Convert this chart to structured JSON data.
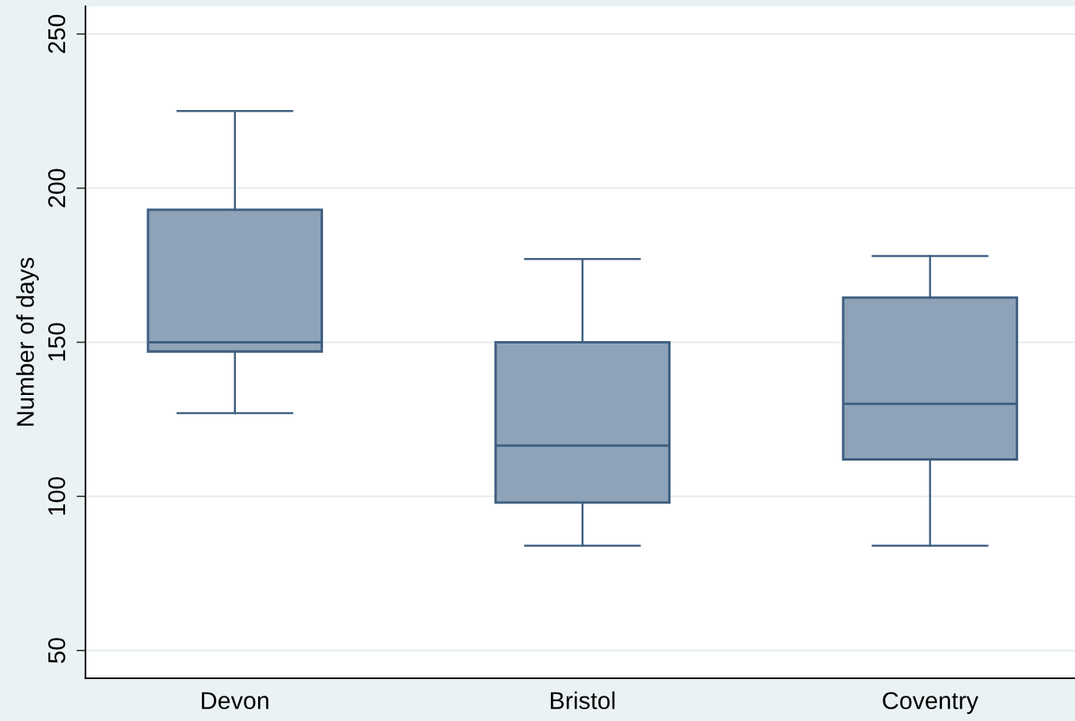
{
  "chart_data": {
    "type": "box",
    "ylabel": "Number of days",
    "categories": [
      "Devon",
      "Bristol",
      "Coventry"
    ],
    "boxes": [
      {
        "low": 127,
        "q1": 147,
        "median": 150,
        "q3": 193,
        "high": 225
      },
      {
        "low": 84,
        "q1": 98,
        "median": 116.5,
        "q3": 150,
        "high": 177
      },
      {
        "low": 84,
        "q1": 112,
        "median": 130,
        "q3": 164.5,
        "high": 178
      }
    ],
    "color": "#8ea3b8",
    "ylim": [
      41,
      259
    ],
    "yticks": [
      50,
      100,
      150,
      200,
      250
    ],
    "grid": "y"
  }
}
